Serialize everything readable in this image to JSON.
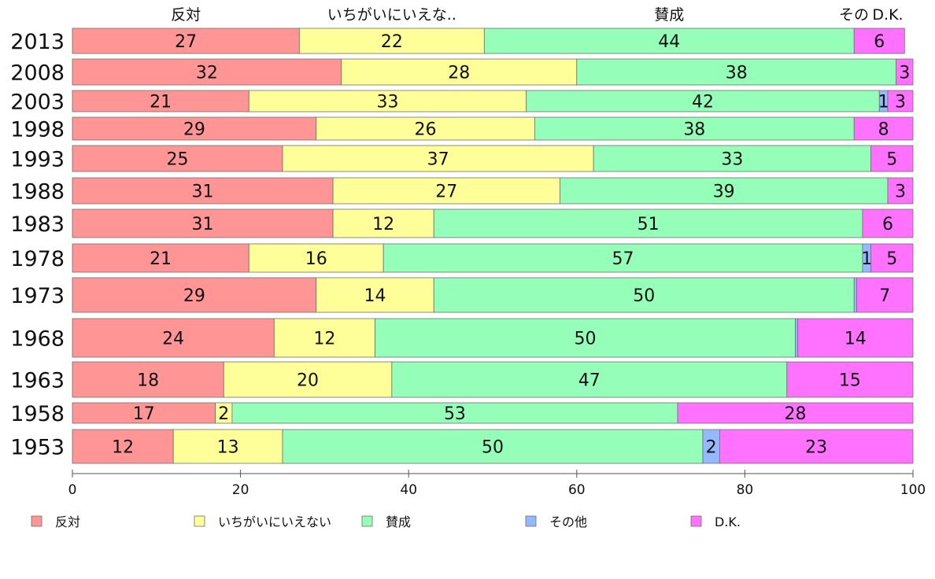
{
  "chart_data": {
    "type": "bar",
    "orientation": "horizontal",
    "stacked": true,
    "categories": [
      "2013",
      "2008",
      "2003",
      "1998",
      "1993",
      "1988",
      "1983",
      "1978",
      "1973",
      "1968",
      "1963",
      "1958",
      "1953"
    ],
    "series": [
      {
        "name": "反対",
        "top_label": "反対",
        "color": "#ff9595",
        "values": [
          27,
          32,
          21,
          29,
          25,
          31,
          31,
          21,
          29,
          24,
          18,
          17,
          12
        ]
      },
      {
        "name": "いちがいにいえない",
        "top_label": "いちがいにいえな..",
        "color": "#ffff99",
        "values": [
          22,
          28,
          33,
          26,
          37,
          27,
          12,
          16,
          14,
          12,
          20,
          2,
          13
        ]
      },
      {
        "name": "賛成",
        "top_label": "賛成",
        "color": "#95ffb9",
        "values": [
          44,
          38,
          42,
          38,
          33,
          39,
          51,
          57,
          50,
          50,
          47,
          53,
          50
        ]
      },
      {
        "name": "その他",
        "top_label": "その",
        "color": "#95b9ff",
        "values": [
          0,
          0,
          1,
          0,
          0,
          0,
          0,
          1,
          0.3,
          0.3,
          0,
          0,
          2
        ]
      },
      {
        "name": "D.K.",
        "top_label": "D.K.",
        "color": "#ff72ff",
        "values": [
          6,
          3,
          3,
          8,
          5,
          3,
          6,
          5,
          7,
          14,
          15,
          28,
          23
        ]
      }
    ],
    "segment_labels": [
      [
        "27",
        "22",
        "44",
        "",
        "6"
      ],
      [
        "32",
        "28",
        "38",
        "",
        "3"
      ],
      [
        "21",
        "33",
        "42",
        "1",
        "3"
      ],
      [
        "29",
        "26",
        "38",
        "",
        "8"
      ],
      [
        "25",
        "37",
        "33",
        "",
        "5"
      ],
      [
        "31",
        "27",
        "39",
        "",
        "3"
      ],
      [
        "31",
        "12",
        "51",
        "",
        "6"
      ],
      [
        "21",
        "16",
        "57",
        "1",
        "5"
      ],
      [
        "29",
        "14",
        "50",
        "",
        "7"
      ],
      [
        "24",
        "12",
        "50",
        "",
        "14"
      ],
      [
        "18",
        "20",
        "47",
        "",
        "15"
      ],
      [
        "17",
        "2",
        "53",
        "",
        "28"
      ],
      [
        "12",
        "13",
        "50",
        "2",
        "23"
      ]
    ],
    "xlim": [
      0,
      100
    ],
    "xticks": [
      "0",
      "20",
      "40",
      "60",
      "80",
      "100"
    ],
    "legend_position": "bottom"
  }
}
